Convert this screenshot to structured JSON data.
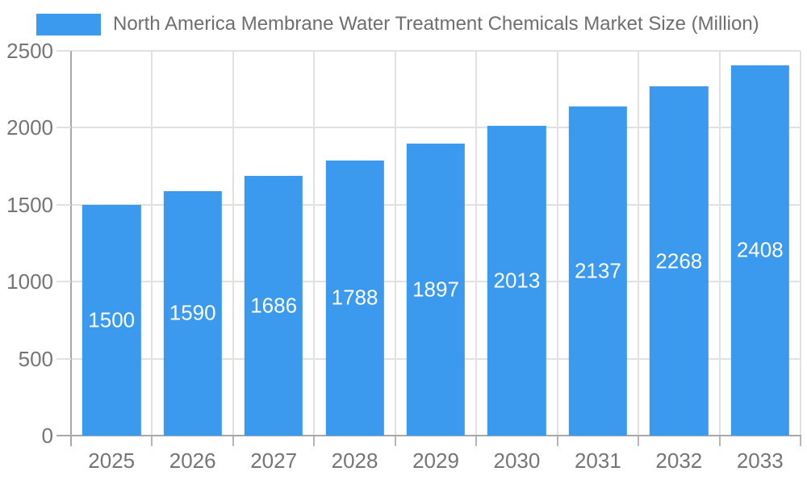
{
  "chart_data": {
    "type": "bar",
    "title": "North America Membrane Water Treatment Chemicals Market Size (Million)",
    "categories": [
      "2025",
      "2026",
      "2027",
      "2028",
      "2029",
      "2030",
      "2031",
      "2032",
      "2033"
    ],
    "values": [
      1500,
      1590,
      1686,
      1788,
      1897,
      2013,
      2137,
      2268,
      2408
    ],
    "xlabel": "",
    "ylabel": "",
    "ylim": [
      0,
      2500
    ],
    "yticks": [
      0,
      500,
      1000,
      1500,
      2000,
      2500
    ],
    "grid": true,
    "legend_position": "top-left",
    "bar_labels_inside": true,
    "colors": {
      "bar": "#3B99EE",
      "grid": "#E1E1E1",
      "axis": "#A8A8A8",
      "tick": "#B5B5B5",
      "axis_text": "#757575",
      "legend_text": "#6E6E6E",
      "value_label": "#FFFFFF",
      "background": "#FFFFFF"
    }
  }
}
